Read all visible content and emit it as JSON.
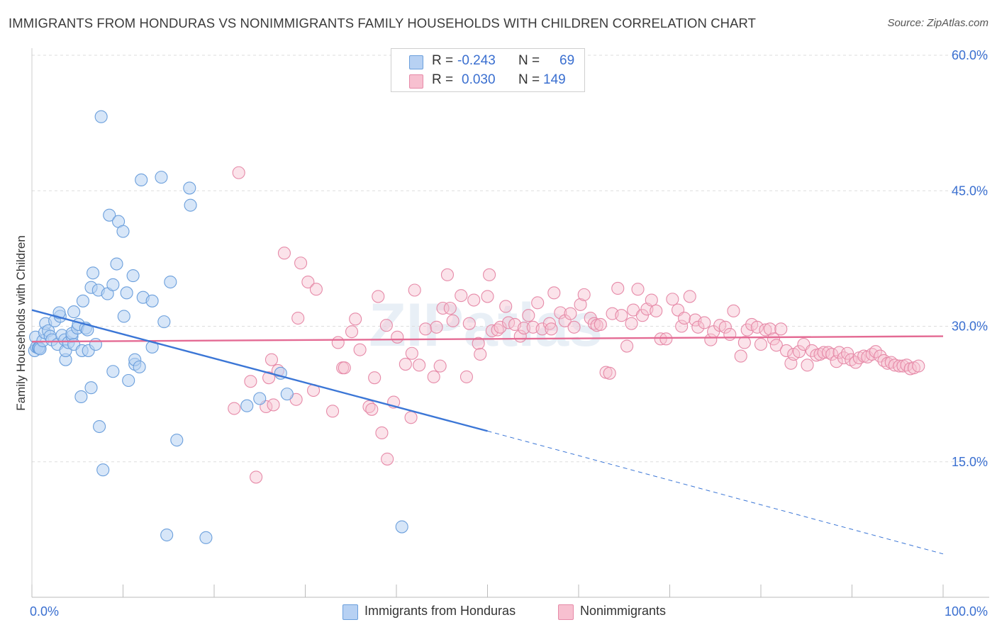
{
  "title": "IMMIGRANTS FROM HONDURAS VS NONIMMIGRANTS FAMILY HOUSEHOLDS WITH CHILDREN CORRELATION CHART",
  "source": "Source: ZipAtlas.com",
  "legend": {
    "rows": [
      {
        "r_label": "R =",
        "r_value": "-0.243",
        "n_label": "N =",
        "n_value": "69"
      },
      {
        "r_label": "R =",
        "r_value": "0.030",
        "n_label": "N =",
        "n_value": "149"
      }
    ]
  },
  "bottom_legend": {
    "series1": "Immigrants from Honduras",
    "series2": "Nonimmigrants"
  },
  "colors": {
    "blue_fill": "#b7d1f3",
    "blue_edge": "#6b9fdc",
    "blue_line": "#3b76d6",
    "pink_fill": "#f7c0d0",
    "pink_edge": "#e68aa8",
    "pink_line": "#e46b94",
    "axis_label": "#3a6fd0",
    "grid": "#dddddd"
  },
  "chart_data": {
    "type": "scatter",
    "title": "IMMIGRANTS FROM HONDURAS VS NONIMMIGRANTS FAMILY HOUSEHOLDS WITH CHILDREN CORRELATION CHART",
    "xlabel": "",
    "ylabel": "Family Households with Children",
    "xlim": [
      0,
      100
    ],
    "ylim": [
      0,
      60
    ],
    "x_tick_labels": [
      "0.0%",
      "100.0%"
    ],
    "y_ticks": [
      15,
      30,
      45,
      60
    ],
    "y_tick_labels": [
      "15.0%",
      "30.0%",
      "45.0%",
      "60.0%"
    ],
    "watermark": "ZIPatlas",
    "series": [
      {
        "name": "Immigrants from Honduras",
        "color": "#6b9fdc",
        "trend": {
          "x": [
            0,
            50
          ],
          "y": [
            31.8,
            18.4
          ]
        },
        "trend_extension": {
          "x": [
            50,
            100
          ],
          "y": [
            18.4,
            4.8
          ]
        },
        "points": [
          [
            0.3,
            27.3
          ],
          [
            0.4,
            28.8
          ],
          [
            0.5,
            27.7
          ],
          [
            0.7,
            27.6
          ],
          [
            0.8,
            27.6
          ],
          [
            0.9,
            27.5
          ],
          [
            1.2,
            28.4
          ],
          [
            1.4,
            29.3
          ],
          [
            1.5,
            30.3
          ],
          [
            1.8,
            29.5
          ],
          [
            2.0,
            28.9
          ],
          [
            2.2,
            28.5
          ],
          [
            2.5,
            30.6
          ],
          [
            2.8,
            28.0
          ],
          [
            3.1,
            31.1
          ],
          [
            3.0,
            31.5
          ],
          [
            3.3,
            29.0
          ],
          [
            3.6,
            28.5
          ],
          [
            3.7,
            26.3
          ],
          [
            3.7,
            27.3
          ],
          [
            4.0,
            28.2
          ],
          [
            4.4,
            28.9
          ],
          [
            4.4,
            29.2
          ],
          [
            4.6,
            28.0
          ],
          [
            4.6,
            31.6
          ],
          [
            5.0,
            29.8
          ],
          [
            5.1,
            30.2
          ],
          [
            5.4,
            22.2
          ],
          [
            5.5,
            27.3
          ],
          [
            5.6,
            32.8
          ],
          [
            5.9,
            29.8
          ],
          [
            6.1,
            29.6
          ],
          [
            6.2,
            27.3
          ],
          [
            6.5,
            34.3
          ],
          [
            6.5,
            23.2
          ],
          [
            6.7,
            35.9
          ],
          [
            7.0,
            28.0
          ],
          [
            7.3,
            34.0
          ],
          [
            7.4,
            18.9
          ],
          [
            7.6,
            53.2
          ],
          [
            7.8,
            14.1
          ],
          [
            8.3,
            33.6
          ],
          [
            8.5,
            42.3
          ],
          [
            8.9,
            25.0
          ],
          [
            8.9,
            34.6
          ],
          [
            9.3,
            36.9
          ],
          [
            9.5,
            41.6
          ],
          [
            10.0,
            40.5
          ],
          [
            10.1,
            31.1
          ],
          [
            10.4,
            33.7
          ],
          [
            10.6,
            24.0
          ],
          [
            11.1,
            35.6
          ],
          [
            11.3,
            25.8
          ],
          [
            11.3,
            26.3
          ],
          [
            11.8,
            25.5
          ],
          [
            12.0,
            46.2
          ],
          [
            12.2,
            33.2
          ],
          [
            13.2,
            27.7
          ],
          [
            13.2,
            32.8
          ],
          [
            14.2,
            46.5
          ],
          [
            14.5,
            30.5
          ],
          [
            14.8,
            6.9
          ],
          [
            15.2,
            34.9
          ],
          [
            15.9,
            17.4
          ],
          [
            17.3,
            45.3
          ],
          [
            17.4,
            43.4
          ],
          [
            19.1,
            6.6
          ],
          [
            23.6,
            21.2
          ],
          [
            25.0,
            22.0
          ],
          [
            27.3,
            24.8
          ],
          [
            28.0,
            22.5
          ],
          [
            40.6,
            7.8
          ]
        ]
      },
      {
        "name": "Nonimmigrants",
        "color": "#e68aa8",
        "trend": {
          "x": [
            0,
            100
          ],
          "y": [
            28.3,
            28.9
          ]
        },
        "points": [
          [
            22.2,
            20.9
          ],
          [
            22.7,
            47.0
          ],
          [
            24.0,
            23.9
          ],
          [
            24.6,
            13.3
          ],
          [
            25.7,
            21.1
          ],
          [
            26.0,
            24.3
          ],
          [
            26.3,
            26.3
          ],
          [
            26.5,
            21.3
          ],
          [
            27.0,
            25.1
          ],
          [
            27.7,
            38.1
          ],
          [
            29.0,
            21.9
          ],
          [
            29.2,
            30.9
          ],
          [
            29.5,
            37.0
          ],
          [
            30.3,
            34.9
          ],
          [
            30.9,
            22.9
          ],
          [
            31.2,
            34.1
          ],
          [
            33.0,
            20.6
          ],
          [
            33.6,
            28.2
          ],
          [
            34.1,
            25.4
          ],
          [
            34.3,
            25.4
          ],
          [
            35.1,
            29.4
          ],
          [
            35.5,
            30.8
          ],
          [
            36.0,
            27.4
          ],
          [
            37.0,
            21.1
          ],
          [
            37.3,
            20.8
          ],
          [
            37.6,
            24.3
          ],
          [
            38.0,
            33.3
          ],
          [
            38.4,
            18.2
          ],
          [
            38.9,
            30.1
          ],
          [
            39.0,
            15.3
          ],
          [
            39.7,
            21.6
          ],
          [
            40.1,
            28.8
          ],
          [
            41.0,
            25.8
          ],
          [
            41.6,
            19.9
          ],
          [
            41.7,
            27.0
          ],
          [
            42.0,
            34.0
          ],
          [
            42.5,
            25.7
          ],
          [
            43.2,
            29.7
          ],
          [
            44.1,
            24.4
          ],
          [
            44.4,
            29.9
          ],
          [
            44.8,
            25.6
          ],
          [
            45.1,
            32.0
          ],
          [
            45.6,
            35.7
          ],
          [
            45.9,
            32.0
          ],
          [
            46.2,
            30.6
          ],
          [
            47.1,
            33.4
          ],
          [
            47.7,
            24.4
          ],
          [
            48.0,
            30.3
          ],
          [
            48.5,
            32.9
          ],
          [
            49.0,
            28.1
          ],
          [
            49.2,
            26.9
          ],
          [
            50.0,
            33.3
          ],
          [
            50.2,
            35.7
          ],
          [
            50.5,
            29.5
          ],
          [
            51.1,
            29.6
          ],
          [
            51.4,
            29.9
          ],
          [
            52.0,
            32.2
          ],
          [
            52.3,
            30.4
          ],
          [
            53.0,
            30.2
          ],
          [
            53.6,
            28.9
          ],
          [
            54.0,
            29.8
          ],
          [
            54.5,
            31.2
          ],
          [
            55.0,
            29.9
          ],
          [
            55.5,
            32.6
          ],
          [
            56.0,
            29.7
          ],
          [
            56.8,
            30.3
          ],
          [
            57.0,
            29.7
          ],
          [
            57.3,
            33.7
          ],
          [
            58.0,
            31.5
          ],
          [
            58.5,
            30.6
          ],
          [
            59.1,
            31.4
          ],
          [
            59.5,
            29.9
          ],
          [
            60.2,
            32.4
          ],
          [
            60.6,
            33.5
          ],
          [
            61.3,
            30.9
          ],
          [
            61.7,
            30.3
          ],
          [
            62.0,
            30.1
          ],
          [
            62.4,
            30.2
          ],
          [
            63.0,
            24.9
          ],
          [
            63.4,
            24.8
          ],
          [
            63.7,
            31.4
          ],
          [
            64.3,
            34.2
          ],
          [
            64.7,
            31.2
          ],
          [
            65.3,
            27.8
          ],
          [
            65.8,
            30.3
          ],
          [
            66.0,
            31.8
          ],
          [
            66.5,
            34.1
          ],
          [
            67.0,
            31.2
          ],
          [
            67.5,
            31.9
          ],
          [
            68.0,
            32.9
          ],
          [
            68.5,
            31.7
          ],
          [
            69.0,
            28.6
          ],
          [
            69.6,
            28.6
          ],
          [
            70.3,
            33.0
          ],
          [
            70.9,
            31.8
          ],
          [
            71.3,
            30.0
          ],
          [
            71.6,
            30.9
          ],
          [
            72.2,
            33.3
          ],
          [
            72.8,
            30.7
          ],
          [
            73.1,
            29.9
          ],
          [
            73.8,
            30.4
          ],
          [
            74.5,
            28.5
          ],
          [
            74.8,
            29.4
          ],
          [
            75.5,
            30.1
          ],
          [
            76.1,
            29.9
          ],
          [
            76.6,
            29.1
          ],
          [
            77.0,
            31.7
          ],
          [
            77.8,
            26.7
          ],
          [
            78.2,
            28.2
          ],
          [
            78.5,
            29.6
          ],
          [
            79.0,
            30.2
          ],
          [
            79.6,
            29.9
          ],
          [
            80.0,
            28.0
          ],
          [
            80.5,
            29.6
          ],
          [
            81.0,
            29.7
          ],
          [
            81.4,
            28.6
          ],
          [
            81.7,
            27.9
          ],
          [
            82.2,
            29.7
          ],
          [
            82.8,
            27.3
          ],
          [
            83.3,
            25.9
          ],
          [
            83.6,
            26.9
          ],
          [
            84.2,
            27.2
          ],
          [
            84.7,
            28.0
          ],
          [
            85.1,
            25.7
          ],
          [
            85.6,
            27.3
          ],
          [
            86.1,
            26.8
          ],
          [
            86.5,
            26.9
          ],
          [
            86.9,
            27.1
          ],
          [
            87.4,
            27.1
          ],
          [
            87.8,
            26.9
          ],
          [
            88.3,
            26.1
          ],
          [
            88.6,
            27.1
          ],
          [
            89.1,
            26.5
          ],
          [
            89.5,
            27.0
          ],
          [
            89.9,
            26.3
          ],
          [
            90.4,
            26.0
          ],
          [
            90.8,
            26.5
          ],
          [
            91.3,
            26.7
          ],
          [
            91.7,
            26.6
          ],
          [
            92.2,
            26.9
          ],
          [
            92.6,
            27.2
          ],
          [
            93.1,
            26.7
          ],
          [
            93.5,
            26.2
          ],
          [
            93.9,
            25.9
          ],
          [
            94.3,
            26.0
          ],
          [
            94.7,
            25.7
          ],
          [
            95.2,
            25.6
          ],
          [
            95.6,
            25.6
          ],
          [
            96.0,
            25.7
          ],
          [
            96.4,
            25.3
          ],
          [
            96.8,
            25.4
          ],
          [
            97.3,
            25.6
          ]
        ]
      }
    ]
  }
}
